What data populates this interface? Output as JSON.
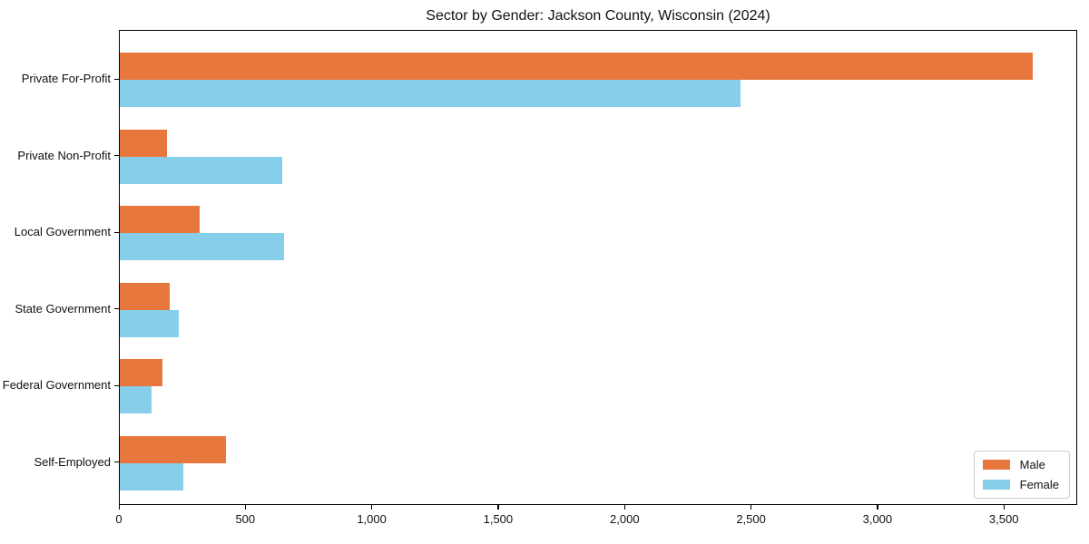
{
  "figure": {
    "background": "#ffffff",
    "plot_border_color": "#000000"
  },
  "chart_data": {
    "type": "bar",
    "orientation": "horizontal",
    "title": "Sector by Gender: Jackson County, Wisconsin (2024)",
    "categories": [
      "Private For-Profit",
      "Private Non-Profit",
      "Local Government",
      "State Government",
      "Federal Government",
      "Self-Employed"
    ],
    "series": [
      {
        "name": "Male",
        "color": "#e8773d",
        "values": [
          3610,
          185,
          317,
          199,
          169,
          419
        ]
      },
      {
        "name": "Female",
        "color": "#87ceeb",
        "values": [
          2453,
          644,
          648,
          232,
          127,
          252
        ]
      }
    ],
    "xlabel": "",
    "ylabel": "",
    "xlim": [
      0,
      3790
    ],
    "xticks": [
      {
        "value": 0,
        "label": "0"
      },
      {
        "value": 500,
        "label": "500"
      },
      {
        "value": 1000,
        "label": "1,000"
      },
      {
        "value": 1500,
        "label": "1,500"
      },
      {
        "value": 2000,
        "label": "2,000"
      },
      {
        "value": 2500,
        "label": "2,500"
      },
      {
        "value": 3000,
        "label": "3,000"
      },
      {
        "value": 3500,
        "label": "3,500"
      }
    ],
    "grid": false,
    "legend_position": "lower right"
  }
}
